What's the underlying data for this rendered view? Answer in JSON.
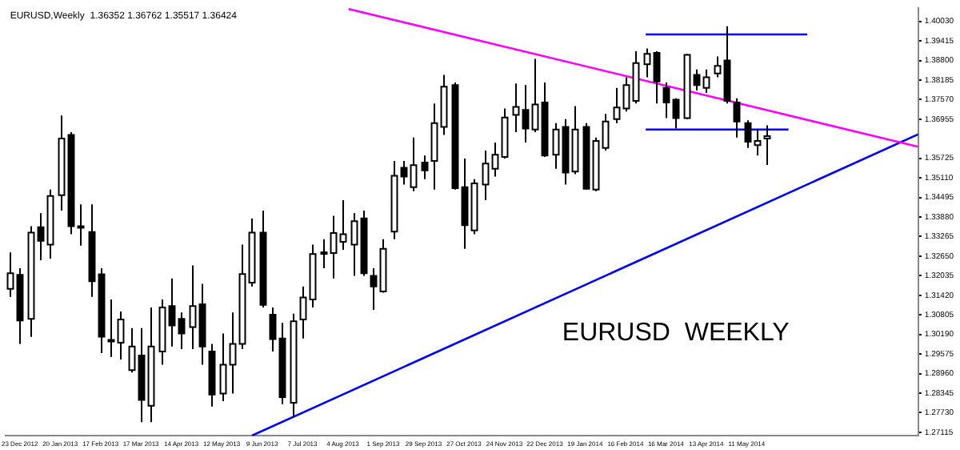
{
  "chart_data": {
    "type": "candlestick",
    "title": "EURUSD,Weekly  1.36352 1.36762 1.35517 1.36424",
    "annotations": [
      "EURUSD  WEEKLY"
    ],
    "x": [
      "2012-12-16",
      "2012-12-23",
      "2012-12-30",
      "2013-01-06",
      "2013-01-13",
      "2013-01-20",
      "2013-01-27",
      "2013-02-03",
      "2013-02-10",
      "2013-02-17",
      "2013-02-24",
      "2013-03-03",
      "2013-03-10",
      "2013-03-17",
      "2013-03-24",
      "2013-03-31",
      "2013-04-07",
      "2013-04-14",
      "2013-04-21",
      "2013-04-28",
      "2013-05-05",
      "2013-05-12",
      "2013-05-19",
      "2013-05-26",
      "2013-06-02",
      "2013-06-09",
      "2013-06-16",
      "2013-06-23",
      "2013-06-30",
      "2013-07-07",
      "2013-07-14",
      "2013-07-21",
      "2013-07-28",
      "2013-08-04",
      "2013-08-11",
      "2013-08-18",
      "2013-08-25",
      "2013-09-01",
      "2013-09-08",
      "2013-09-15",
      "2013-09-22",
      "2013-09-29",
      "2013-10-06",
      "2013-10-13",
      "2013-10-20",
      "2013-10-27",
      "2013-11-03",
      "2013-11-10",
      "2013-11-17",
      "2013-11-24",
      "2013-12-01",
      "2013-12-08",
      "2013-12-15",
      "2013-12-22",
      "2013-12-29",
      "2014-01-05",
      "2014-01-12",
      "2014-01-19",
      "2014-01-26",
      "2014-02-02",
      "2014-02-09",
      "2014-02-16",
      "2014-02-23",
      "2014-03-02",
      "2014-03-09",
      "2014-03-16",
      "2014-03-23",
      "2014-03-30",
      "2014-04-06",
      "2014-04-13",
      "2014-04-20",
      "2014-04-27",
      "2014-05-04",
      "2014-05-11",
      "2014-05-18",
      "2014-05-25"
    ],
    "ohlc": [
      [
        1.3162,
        1.3277,
        1.3137,
        1.3211
      ],
      [
        1.3206,
        1.3227,
        1.2989,
        1.3063
      ],
      [
        1.3068,
        1.3359,
        1.3011,
        1.3339
      ],
      [
        1.3356,
        1.34,
        1.3252,
        1.3313
      ],
      [
        1.3301,
        1.3474,
        1.3257,
        1.3454
      ],
      [
        1.3457,
        1.3707,
        1.3408,
        1.3635
      ],
      [
        1.3646,
        1.3655,
        1.3334,
        1.3359
      ],
      [
        1.3359,
        1.3428,
        1.3298,
        1.3354
      ],
      [
        1.3341,
        1.3428,
        1.3137,
        1.3186
      ],
      [
        1.3208,
        1.3227,
        1.296,
        1.3012
      ],
      [
        1.3002,
        1.3129,
        1.2948,
        1.2997
      ],
      [
        1.2993,
        1.3091,
        1.294,
        1.3066
      ],
      [
        1.2907,
        1.3039,
        1.2899,
        1.2981
      ],
      [
        1.2953,
        1.3039,
        1.2743,
        1.2813
      ],
      [
        1.2795,
        1.3104,
        1.2743,
        1.2981
      ],
      [
        1.2965,
        1.3129,
        1.2924,
        1.3104
      ],
      [
        1.3108,
        1.3195,
        1.2981,
        1.3047
      ],
      [
        1.3068,
        1.3088,
        1.2973,
        1.3022
      ],
      [
        1.3042,
        1.3236,
        1.2973,
        1.3108
      ],
      [
        1.3114,
        1.3178,
        1.2924,
        1.2981
      ],
      [
        1.2965,
        1.2989,
        1.2792,
        1.283
      ],
      [
        1.2833,
        1.3022,
        1.2809,
        1.2924
      ],
      [
        1.2924,
        1.3088,
        1.2833,
        1.2989
      ],
      [
        1.2989,
        1.3301,
        1.2973,
        1.3209
      ],
      [
        1.3182,
        1.3384,
        1.317,
        1.3339
      ],
      [
        1.3339,
        1.3408,
        1.3104,
        1.3112
      ],
      [
        1.3081,
        1.3104,
        1.2965,
        1.3004
      ],
      [
        1.3006,
        1.3055,
        1.28,
        1.2822
      ],
      [
        1.2804,
        1.3084,
        1.2759,
        1.306
      ],
      [
        1.3066,
        1.317,
        1.3006,
        1.3135
      ],
      [
        1.3129,
        1.3301,
        1.3104,
        1.3272
      ],
      [
        1.3273,
        1.3318,
        1.3227,
        1.3277
      ],
      [
        1.3275,
        1.3392,
        1.3195,
        1.3338
      ],
      [
        1.331,
        1.3441,
        1.3285,
        1.3334
      ],
      [
        1.3301,
        1.34,
        1.3203,
        1.3375
      ],
      [
        1.3384,
        1.3408,
        1.3203,
        1.3211
      ],
      [
        1.3203,
        1.3227,
        1.3096,
        1.317
      ],
      [
        1.3154,
        1.3318,
        1.315,
        1.3288
      ],
      [
        1.3342,
        1.3564,
        1.3318,
        1.3518
      ],
      [
        1.3543,
        1.3564,
        1.349,
        1.3515
      ],
      [
        1.3482,
        1.3638,
        1.3469,
        1.3551
      ],
      [
        1.3559,
        1.3581,
        1.3507,
        1.3535
      ],
      [
        1.3564,
        1.3745,
        1.3474,
        1.3683
      ],
      [
        1.3671,
        1.3835,
        1.3646,
        1.3798
      ],
      [
        1.3803,
        1.3811,
        1.3474,
        1.3479
      ],
      [
        1.3482,
        1.3572,
        1.3288,
        1.3362
      ],
      [
        1.3346,
        1.3507,
        1.3334,
        1.3494
      ],
      [
        1.349,
        1.3597,
        1.3441,
        1.3556
      ],
      [
        1.354,
        1.3622,
        1.3515,
        1.3584
      ],
      [
        1.3577,
        1.3729,
        1.3572,
        1.3701
      ],
      [
        1.3709,
        1.3808,
        1.3655,
        1.3734
      ],
      [
        1.3725,
        1.3803,
        1.3622,
        1.3666
      ],
      [
        1.3663,
        1.3885,
        1.3655,
        1.3742
      ],
      [
        1.3748,
        1.3811,
        1.3577,
        1.3581
      ],
      [
        1.3584,
        1.3683,
        1.354,
        1.3663
      ],
      [
        1.3671,
        1.3696,
        1.349,
        1.3528
      ],
      [
        1.3531,
        1.3737,
        1.3523,
        1.3663
      ],
      [
        1.3671,
        1.3683,
        1.3474,
        1.3477
      ],
      [
        1.3474,
        1.3638,
        1.3469,
        1.3627
      ],
      [
        1.3605,
        1.3712,
        1.3597,
        1.3688
      ],
      [
        1.3696,
        1.3794,
        1.3683,
        1.3732
      ],
      [
        1.3729,
        1.3827,
        1.372,
        1.3803
      ],
      [
        1.3753,
        1.3909,
        1.3745,
        1.3872
      ],
      [
        1.3868,
        1.3918,
        1.3827,
        1.3901
      ],
      [
        1.3904,
        1.3909,
        1.3745,
        1.3814
      ],
      [
        1.3794,
        1.3811,
        1.3699,
        1.3748
      ],
      [
        1.3757,
        1.3761,
        1.3666,
        1.3699
      ],
      [
        1.3699,
        1.3901,
        1.3696,
        1.3898
      ],
      [
        1.3835,
        1.3852,
        1.3786,
        1.3803
      ],
      [
        1.3794,
        1.3852,
        1.3778,
        1.3827
      ],
      [
        1.3839,
        1.3893,
        1.3827,
        1.3863
      ],
      [
        1.388,
        1.3988,
        1.3745,
        1.3753
      ],
      [
        1.3748,
        1.3761,
        1.3638,
        1.3688
      ],
      [
        1.3683,
        1.3692,
        1.3605,
        1.3625
      ],
      [
        1.3614,
        1.3663,
        1.3581,
        1.3627
      ],
      [
        1.3635,
        1.3676,
        1.3552,
        1.3642
      ]
    ],
    "series": [
      {
        "type": "line",
        "color": "#ff00ff",
        "x": [
          "2013-08-08",
          "2014-09-07"
        ],
        "values": [
          1.4042,
          1.3609
        ]
      },
      {
        "type": "line",
        "color": "#0000ff",
        "x": [
          "2013-06-02",
          "2014-09-07"
        ],
        "values": [
          1.2701,
          1.3648
        ]
      },
      {
        "type": "line",
        "color": "#0000ff",
        "x": [
          "2014-03-02",
          "2014-06-22"
        ],
        "values": [
          1.3962,
          1.3962
        ]
      },
      {
        "type": "line",
        "color": "#0000ff",
        "x": [
          "2014-03-02",
          "2014-06-09"
        ],
        "values": [
          1.3663,
          1.3663
        ]
      }
    ],
    "xlim": [
      "2012-12-13",
      "2014-09-07"
    ],
    "xticks": [
      {
        "value": "2012-12-23",
        "label": "23 Dec 2012"
      },
      {
        "value": "2013-01-20",
        "label": "20 Jan 2013"
      },
      {
        "value": "2013-02-17",
        "label": "17 Feb 2013"
      },
      {
        "value": "2013-03-17",
        "label": "17 Mar 2013"
      },
      {
        "value": "2013-04-14",
        "label": "14 Apr 2013"
      },
      {
        "value": "2013-05-12",
        "label": "12 May 2013"
      },
      {
        "value": "2013-06-09",
        "label": "9 Jun 2013"
      },
      {
        "value": "2013-07-07",
        "label": "7 Jul 2013"
      },
      {
        "value": "2013-08-04",
        "label": "4 Aug 2013"
      },
      {
        "value": "2013-09-01",
        "label": "1 Sep 2013"
      },
      {
        "value": "2013-09-29",
        "label": "29 Sep 2013"
      },
      {
        "value": "2013-10-27",
        "label": "27 Oct 2013"
      },
      {
        "value": "2013-11-24",
        "label": "24 Nov 2013"
      },
      {
        "value": "2013-12-22",
        "label": "22 Dec 2013"
      },
      {
        "value": "2014-01-19",
        "label": "19 Jan 2014"
      },
      {
        "value": "2014-02-16",
        "label": "16 Feb 2014"
      },
      {
        "value": "2014-03-16",
        "label": "16 Mar 2014"
      },
      {
        "value": "2014-04-13",
        "label": "13 Apr 2014"
      },
      {
        "value": "2014-05-11",
        "label": "11 May 2014"
      }
    ],
    "ylim": [
      1.27,
      1.4045
    ],
    "yticks": [
      {
        "value": 1.4003,
        "label": "1.40030"
      },
      {
        "value": 1.39415,
        "label": "1.39415"
      },
      {
        "value": 1.388,
        "label": "1.38800"
      },
      {
        "value": 1.38185,
        "label": "1.38185"
      },
      {
        "value": 1.3757,
        "label": "1.37570"
      },
      {
        "value": 1.36955,
        "label": "1.36955"
      },
      {
        "value": 1.35725,
        "label": "1.35725"
      },
      {
        "value": 1.3511,
        "label": "1.35110"
      },
      {
        "value": 1.34495,
        "label": "1.34495"
      },
      {
        "value": 1.3388,
        "label": "1.33880"
      },
      {
        "value": 1.33265,
        "label": "1.33265"
      },
      {
        "value": 1.3265,
        "label": "1.32650"
      },
      {
        "value": 1.32035,
        "label": "1.32035"
      },
      {
        "value": 1.3142,
        "label": "1.31420"
      },
      {
        "value": 1.30805,
        "label": "1.30805"
      },
      {
        "value": 1.3019,
        "label": "1.30190"
      },
      {
        "value": 1.29575,
        "label": "1.29575"
      },
      {
        "value": 1.2896,
        "label": "1.28960"
      },
      {
        "value": 1.28345,
        "label": "1.28345"
      },
      {
        "value": 1.2773,
        "label": "1.27730"
      },
      {
        "value": 1.27115,
        "label": "1.27115"
      }
    ]
  }
}
